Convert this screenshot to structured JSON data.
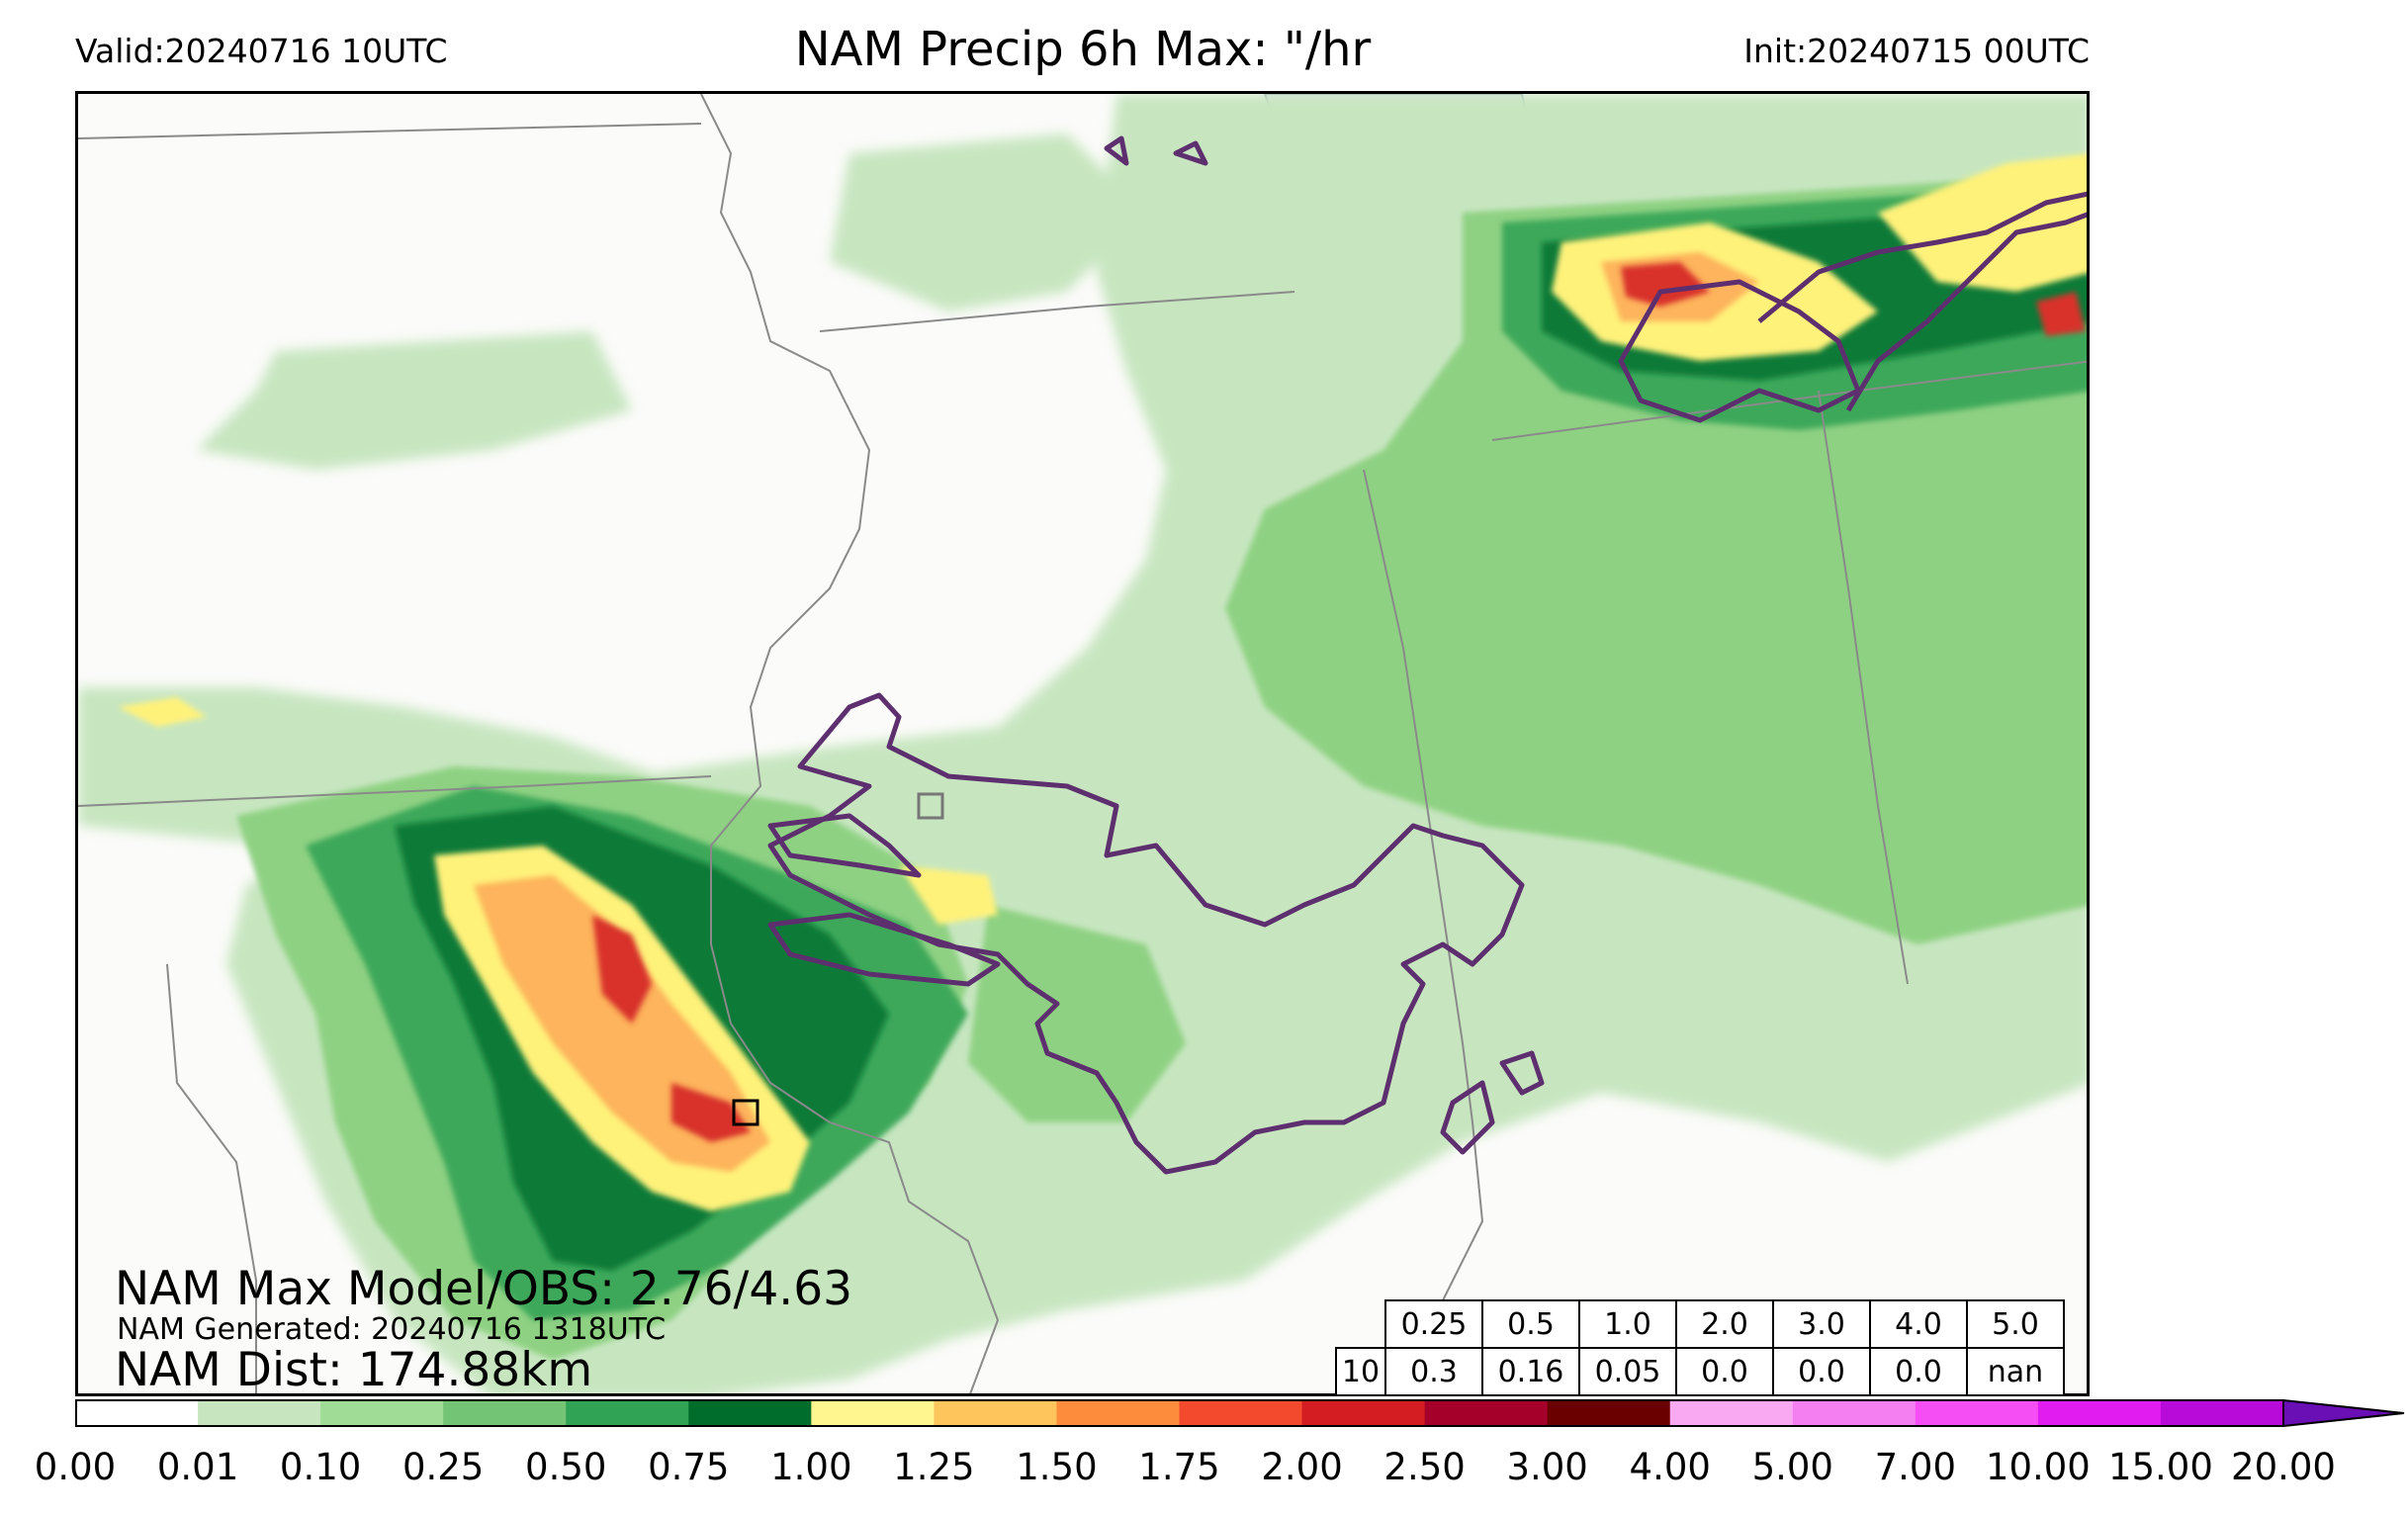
{
  "header": {
    "valid": "Valid:20240716 10UTC",
    "title": "NAM Precip 6h Max: \"/hr",
    "init": "Init:20240715 00UTC"
  },
  "annotations": {
    "max_model_obs": "NAM Max Model/OBS: 2.76/4.63",
    "generated": "NAM Generated: 20240716 1318UTC",
    "distance": "NAM Dist: 174.88km"
  },
  "stats_table": {
    "thresholds": [
      "0.25",
      "0.5",
      "1.0",
      "2.0",
      "3.0",
      "4.0",
      "5.0"
    ],
    "row_label": "10",
    "values": [
      "0.3",
      "0.16",
      "0.05",
      "0.0",
      "0.0",
      "0.0",
      "nan"
    ]
  },
  "colorbar": {
    "labels": [
      "0.00",
      "0.01",
      "0.10",
      "0.25",
      "0.50",
      "0.75",
      "1.00",
      "1.25",
      "1.50",
      "1.75",
      "2.00",
      "2.50",
      "3.00",
      "4.00",
      "5.00",
      "7.00",
      "10.00",
      "15.00",
      "20.00"
    ],
    "colors": [
      "#ffffff",
      "#c7e6c0",
      "#a1dc96",
      "#74c476",
      "#31a354",
      "#006d2c",
      "#fff68f",
      "#fec55c",
      "#fd8c3c",
      "#f34a2e",
      "#d41d22",
      "#a5002a",
      "#6b0000",
      "#f9a9f2",
      "#f47ff0",
      "#f54ef4",
      "#e11cf0",
      "#b80ad8",
      "#6a0fb5"
    ]
  },
  "legend_colors": {
    "light_green": "#c7e6c0",
    "green": "#74c476",
    "dark_green": "#0f7a38",
    "yellow": "#fff68f",
    "orange": "#fdb45c",
    "red": "#d8302a",
    "contour": "#5e2f6e",
    "lake": "#dfe9ea"
  }
}
